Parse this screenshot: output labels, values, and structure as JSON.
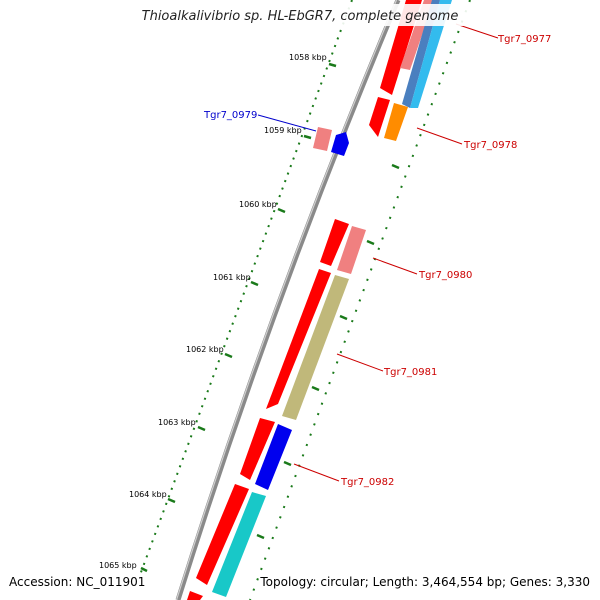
{
  "title": "Thioalkalivibrio sp. HL-EbGR7, complete genome",
  "footer": {
    "accession": "Accession: NC_011901",
    "topology": "Topology: circular; Length: 3,464,554 bp; Genes: 3,330"
  },
  "colors": {
    "backbone": "#808080",
    "tick_mark": "#1a7a1a",
    "label_red": "#cc0000",
    "label_blue": "#0000cc"
  },
  "ticks": [
    {
      "label": "1058 kbp"
    },
    {
      "label": "1059 kbp"
    },
    {
      "label": "1060 kbp"
    },
    {
      "label": "1061 kbp"
    },
    {
      "label": "1062 kbp"
    },
    {
      "label": "1063 kbp"
    },
    {
      "label": "1064 kbp"
    },
    {
      "label": "1065 kbp"
    }
  ],
  "genes": [
    {
      "label": "Tgr7_0977",
      "color": "#cc0000"
    },
    {
      "label": "Tgr7_0978",
      "color": "#cc0000"
    },
    {
      "label": "Tgr7_0979",
      "color": "#0000cc"
    },
    {
      "label": "Tgr7_0980",
      "color": "#cc0000"
    },
    {
      "label": "Tgr7_0981",
      "color": "#cc0000"
    },
    {
      "label": "Tgr7_0982",
      "color": "#cc0000"
    }
  ]
}
